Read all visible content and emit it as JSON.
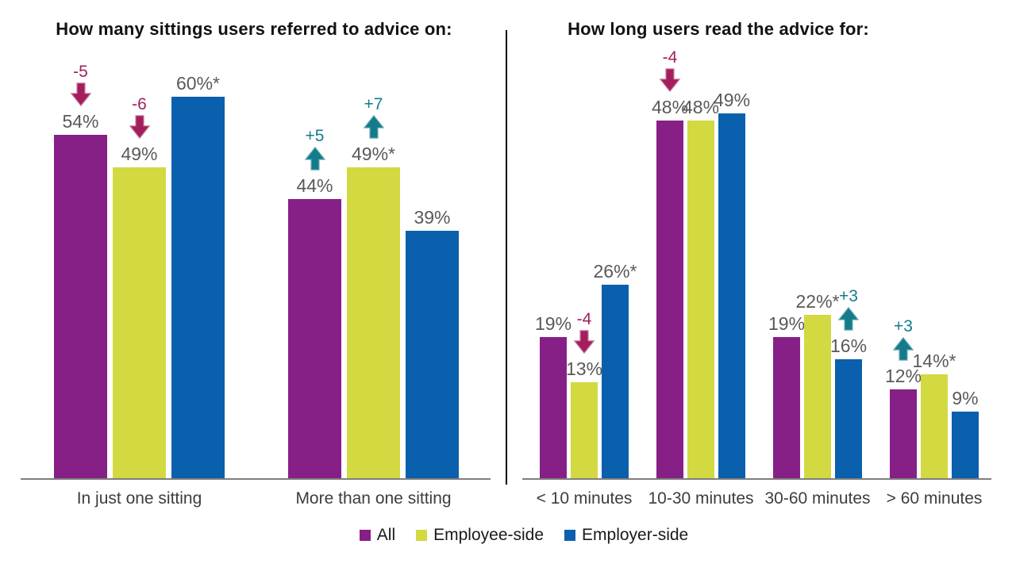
{
  "page": {
    "background": "#FFFFFF"
  },
  "chart_data": [
    {
      "type": "bar",
      "title": "How many sittings users referred to advice on:",
      "categories": [
        "In just one sitting",
        "More than one sitting"
      ],
      "series": [
        {
          "name": "All",
          "color": "#862086",
          "values": [
            54,
            44
          ],
          "labels": [
            "54%",
            "44%"
          ],
          "deltas": [
            "-5",
            "+5"
          ]
        },
        {
          "name": "Employee-side",
          "color": "#D2D941",
          "values": [
            49,
            49
          ],
          "labels": [
            "49%",
            "49%*"
          ],
          "deltas": [
            "-6",
            "+7"
          ]
        },
        {
          "name": "Employer-side",
          "color": "#0A60AC",
          "values": [
            60,
            39
          ],
          "labels": [
            "60%*",
            "39%"
          ],
          "deltas": [
            null,
            null
          ]
        }
      ],
      "ylim": [
        0,
        68
      ],
      "grid": false,
      "value_label_position": "above-bar",
      "legend_position": "bottom-center-shared"
    },
    {
      "type": "bar",
      "title": "How long users read the advice for:",
      "categories": [
        "< 10 minutes",
        "10-30 minutes",
        "30-60 minutes",
        "> 60 minutes"
      ],
      "series": [
        {
          "name": "All",
          "color": "#862086",
          "values": [
            19,
            48,
            19,
            12
          ],
          "labels": [
            "19%",
            "48%",
            "19%",
            "12%"
          ],
          "deltas": [
            null,
            "-4",
            null,
            "+3"
          ]
        },
        {
          "name": "Employee-side",
          "color": "#D2D941",
          "values": [
            13,
            48,
            22,
            14
          ],
          "labels": [
            "13%",
            "48%",
            "22%*",
            "14%*"
          ],
          "deltas": [
            "-4",
            null,
            null,
            null
          ]
        },
        {
          "name": "Employer-side",
          "color": "#0A60AC",
          "values": [
            26,
            49,
            16,
            9
          ],
          "labels": [
            "26%*",
            "49%",
            "16%",
            "9%"
          ],
          "deltas": [
            null,
            null,
            "+3",
            null
          ]
        }
      ],
      "ylim": [
        0,
        58
      ],
      "grid": false,
      "value_label_position": "above-bar",
      "legend_position": "bottom-center-shared"
    }
  ],
  "legend": {
    "items": [
      {
        "label": "All",
        "color": "#862086"
      },
      {
        "label": "Employee-side",
        "color": "#D2D941"
      },
      {
        "label": "Employer-side",
        "color": "#0A60AC"
      }
    ]
  },
  "colors": {
    "increase_arrow": "#147B8A",
    "increase_arrow_outline": "#6FAFB8",
    "decrease_arrow": "#A41E5B",
    "decrease_arrow_outline": "#C77CA3",
    "value_label_text": "#595959",
    "axis_line": "#7F7F7F",
    "divider_line": "#000000"
  }
}
